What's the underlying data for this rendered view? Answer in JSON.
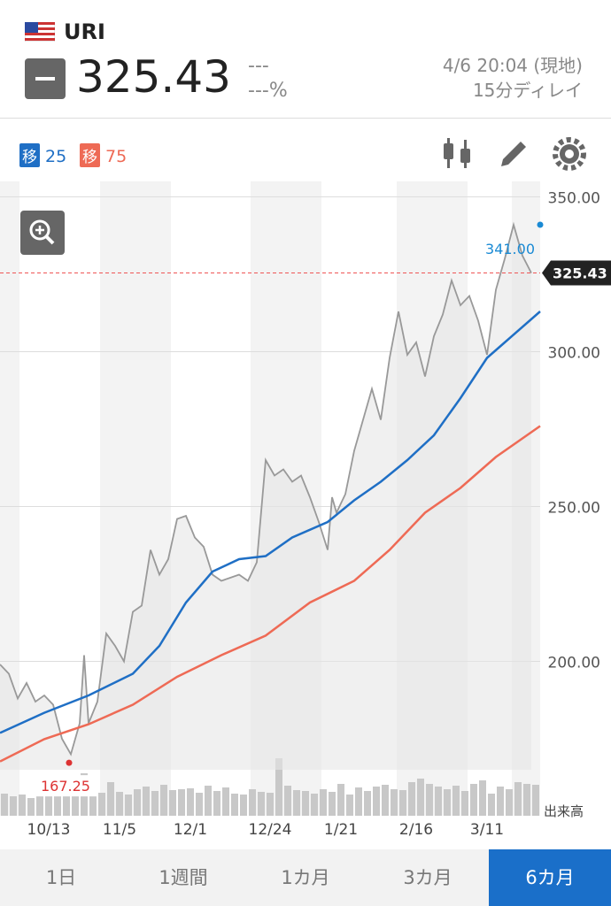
{
  "header": {
    "symbol": "URI",
    "change": "---",
    "change_pct": "---%",
    "time": "4/6 20:04 (現地)",
    "delay": "15分ディレイ"
  },
  "toolbar": {
    "ma": [
      {
        "badge": "移",
        "period": "25"
      },
      {
        "badge": "移",
        "period": "75"
      }
    ]
  },
  "tabs": [
    "1日",
    "1週間",
    "1カ月",
    "3カ月",
    "6カ月"
  ],
  "chart_data": {
    "type": "line",
    "xlim": [
      0,
      122
    ],
    "ylim": [
      165,
      355
    ],
    "xticks": [
      {
        "value": 11,
        "label": "10/13"
      },
      {
        "value": 27,
        "label": "11/5"
      },
      {
        "value": 43,
        "label": "12/1"
      },
      {
        "value": 61,
        "label": "12/24"
      },
      {
        "value": 77,
        "label": "1/21"
      },
      {
        "value": 94,
        "label": "2/16"
      },
      {
        "value": 110,
        "label": "3/11"
      }
    ],
    "yticks": [
      {
        "value": 350,
        "label": "350.00"
      },
      {
        "value": 300,
        "label": "300.00"
      },
      {
        "value": 250,
        "label": "250.00"
      },
      {
        "value": 200,
        "label": "200.00"
      }
    ],
    "grid": true,
    "series": [
      {
        "color": "#999999",
        "x": [
          0,
          2,
          4,
          6,
          8,
          10,
          12,
          14,
          16,
          18,
          19,
          20,
          22,
          24,
          26,
          28,
          30,
          32,
          34,
          36,
          38,
          40,
          42,
          44,
          46,
          48,
          50,
          52,
          54,
          56,
          58,
          60,
          62,
          64,
          66,
          68,
          70,
          72,
          74,
          75,
          76,
          78,
          80,
          82,
          84,
          86,
          88,
          90,
          92,
          94,
          96,
          98,
          100,
          102,
          104,
          106,
          108,
          110,
          112,
          114,
          116,
          118,
          120
        ],
        "values": [
          199,
          196,
          188,
          193,
          187,
          189,
          186,
          175,
          170,
          180,
          202,
          180,
          187,
          209,
          205,
          200,
          216,
          218,
          236,
          228,
          233,
          246,
          247,
          240,
          237,
          228,
          226,
          227,
          228,
          226,
          232,
          265,
          260,
          262,
          258,
          260,
          253,
          245,
          236,
          253,
          248,
          254,
          268,
          278,
          288,
          278,
          298,
          313,
          299,
          303,
          292,
          305,
          312,
          323,
          315,
          318,
          310,
          299,
          320,
          330,
          341,
          331,
          325.43
        ]
      },
      {
        "name": "25",
        "color": "#1f6fc5",
        "x": [
          0,
          10,
          20,
          30,
          36,
          42,
          48,
          54,
          60,
          66,
          74,
          80,
          86,
          92,
          98,
          104,
          110,
          114,
          122
        ],
        "values": [
          176.9,
          183.4,
          189,
          196,
          205,
          219,
          229,
          233,
          234,
          240,
          245,
          252,
          258,
          265,
          273,
          285,
          298,
          303,
          313
        ]
      },
      {
        "name": "75",
        "color": "#ee6a55",
        "x": [
          0,
          10,
          20,
          30,
          40,
          50,
          60,
          70,
          80,
          88,
          96,
          104,
          112,
          122
        ],
        "values": [
          167.7,
          174.9,
          179.7,
          186,
          195,
          202,
          208.3,
          219,
          226,
          236,
          248,
          256,
          266,
          276
        ]
      }
    ],
    "current": {
      "value": 325.43,
      "label": "325.43"
    },
    "high": {
      "x": 122,
      "value": 341,
      "label": "341.00"
    },
    "low": {
      "x": 15.6,
      "value": 167.25,
      "label": "167.25"
    },
    "volume": {
      "label": "出来高",
      "ylim": [
        0,
        70
      ],
      "color": "#c8c8c8",
      "values": [
        25,
        22,
        24,
        20,
        26,
        23,
        28,
        25,
        22,
        48,
        30,
        26,
        38,
        27,
        24,
        30,
        33,
        28,
        35,
        29,
        30,
        31,
        26,
        34,
        28,
        32,
        25,
        24,
        30,
        27,
        26,
        65,
        34,
        29,
        28,
        25,
        30,
        27,
        36,
        24,
        32,
        28,
        33,
        35,
        30,
        29,
        38,
        42,
        36,
        33,
        30,
        34,
        28,
        36,
        40,
        25,
        33,
        30,
        38,
        36,
        35
      ]
    }
  }
}
